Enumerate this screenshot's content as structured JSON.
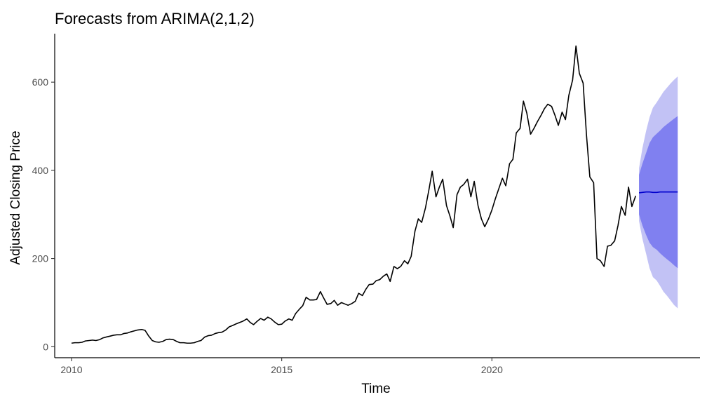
{
  "chart_data": {
    "type": "line",
    "title": "Forecasts from ARIMA(2,1,2)",
    "xlabel": "Time",
    "ylabel": "Adjusted Closing Price",
    "xlim": [
      2009.6,
      2024.95
    ],
    "ylim": [
      -25,
      710
    ],
    "x_ticks": [
      2010,
      2015,
      2020
    ],
    "y_ticks": [
      0,
      200,
      400,
      600
    ],
    "grid": false,
    "legend": "none",
    "colors": {
      "history": "#000000",
      "forecast_mean": "#0000cc",
      "band_80": "#8080f0",
      "band_95": "#c2c2f5"
    },
    "series": [
      {
        "role": "history",
        "points": [
          [
            2010.0,
            8
          ],
          [
            2010.08,
            9
          ],
          [
            2010.17,
            9
          ],
          [
            2010.25,
            10
          ],
          [
            2010.33,
            13
          ],
          [
            2010.42,
            14
          ],
          [
            2010.5,
            15
          ],
          [
            2010.58,
            14
          ],
          [
            2010.67,
            16
          ],
          [
            2010.75,
            20
          ],
          [
            2010.83,
            22
          ],
          [
            2010.92,
            24
          ],
          [
            2011.0,
            26
          ],
          [
            2011.08,
            27
          ],
          [
            2011.17,
            27
          ],
          [
            2011.25,
            30
          ],
          [
            2011.33,
            31
          ],
          [
            2011.42,
            34
          ],
          [
            2011.5,
            36
          ],
          [
            2011.58,
            38
          ],
          [
            2011.67,
            39
          ],
          [
            2011.75,
            37
          ],
          [
            2011.83,
            25
          ],
          [
            2011.92,
            14
          ],
          [
            2012.0,
            11
          ],
          [
            2012.08,
            10
          ],
          [
            2012.17,
            12
          ],
          [
            2012.25,
            16
          ],
          [
            2012.33,
            17
          ],
          [
            2012.42,
            16
          ],
          [
            2012.5,
            12
          ],
          [
            2012.58,
            9
          ],
          [
            2012.67,
            9
          ],
          [
            2012.75,
            8
          ],
          [
            2012.83,
            8
          ],
          [
            2012.92,
            9
          ],
          [
            2013.0,
            12
          ],
          [
            2013.08,
            14
          ],
          [
            2013.17,
            22
          ],
          [
            2013.25,
            25
          ],
          [
            2013.33,
            26
          ],
          [
            2013.42,
            30
          ],
          [
            2013.5,
            32
          ],
          [
            2013.58,
            33
          ],
          [
            2013.67,
            38
          ],
          [
            2013.75,
            45
          ],
          [
            2013.83,
            48
          ],
          [
            2013.92,
            52
          ],
          [
            2014.0,
            55
          ],
          [
            2014.08,
            58
          ],
          [
            2014.17,
            63
          ],
          [
            2014.25,
            55
          ],
          [
            2014.33,
            50
          ],
          [
            2014.42,
            58
          ],
          [
            2014.5,
            64
          ],
          [
            2014.58,
            60
          ],
          [
            2014.67,
            67
          ],
          [
            2014.75,
            63
          ],
          [
            2014.83,
            56
          ],
          [
            2014.92,
            50
          ],
          [
            2015.0,
            51
          ],
          [
            2015.08,
            58
          ],
          [
            2015.17,
            63
          ],
          [
            2015.25,
            60
          ],
          [
            2015.33,
            75
          ],
          [
            2015.42,
            85
          ],
          [
            2015.5,
            93
          ],
          [
            2015.58,
            112
          ],
          [
            2015.67,
            106
          ],
          [
            2015.75,
            106
          ],
          [
            2015.83,
            107
          ],
          [
            2015.92,
            125
          ],
          [
            2016.0,
            110
          ],
          [
            2016.08,
            96
          ],
          [
            2016.17,
            98
          ],
          [
            2016.25,
            105
          ],
          [
            2016.33,
            94
          ],
          [
            2016.42,
            100
          ],
          [
            2016.5,
            97
          ],
          [
            2016.58,
            94
          ],
          [
            2016.67,
            98
          ],
          [
            2016.75,
            103
          ],
          [
            2016.83,
            121
          ],
          [
            2016.92,
            116
          ],
          [
            2017.0,
            130
          ],
          [
            2017.08,
            141
          ],
          [
            2017.17,
            142
          ],
          [
            2017.25,
            150
          ],
          [
            2017.33,
            152
          ],
          [
            2017.42,
            160
          ],
          [
            2017.5,
            165
          ],
          [
            2017.58,
            148
          ],
          [
            2017.67,
            182
          ],
          [
            2017.75,
            177
          ],
          [
            2017.83,
            182
          ],
          [
            2017.92,
            195
          ],
          [
            2018.0,
            188
          ],
          [
            2018.08,
            205
          ],
          [
            2018.17,
            262
          ],
          [
            2018.25,
            290
          ],
          [
            2018.33,
            282
          ],
          [
            2018.42,
            315
          ],
          [
            2018.5,
            355
          ],
          [
            2018.58,
            398
          ],
          [
            2018.67,
            340
          ],
          [
            2018.75,
            362
          ],
          [
            2018.83,
            380
          ],
          [
            2018.92,
            320
          ],
          [
            2019.0,
            297
          ],
          [
            2019.08,
            270
          ],
          [
            2019.17,
            345
          ],
          [
            2019.25,
            362
          ],
          [
            2019.33,
            368
          ],
          [
            2019.42,
            380
          ],
          [
            2019.5,
            340
          ],
          [
            2019.58,
            375
          ],
          [
            2019.67,
            320
          ],
          [
            2019.75,
            290
          ],
          [
            2019.83,
            272
          ],
          [
            2019.92,
            290
          ],
          [
            2020.0,
            310
          ],
          [
            2020.08,
            335
          ],
          [
            2020.17,
            360
          ],
          [
            2020.25,
            382
          ],
          [
            2020.33,
            365
          ],
          [
            2020.42,
            415
          ],
          [
            2020.5,
            425
          ],
          [
            2020.58,
            485
          ],
          [
            2020.67,
            495
          ],
          [
            2020.75,
            557
          ],
          [
            2020.83,
            530
          ],
          [
            2020.92,
            482
          ],
          [
            2021.0,
            495
          ],
          [
            2021.08,
            510
          ],
          [
            2021.17,
            525
          ],
          [
            2021.25,
            540
          ],
          [
            2021.33,
            550
          ],
          [
            2021.42,
            545
          ],
          [
            2021.5,
            525
          ],
          [
            2021.58,
            502
          ],
          [
            2021.67,
            532
          ],
          [
            2021.75,
            515
          ],
          [
            2021.83,
            570
          ],
          [
            2021.92,
            605
          ],
          [
            2022.0,
            682
          ],
          [
            2022.08,
            620
          ],
          [
            2022.17,
            598
          ],
          [
            2022.25,
            480
          ],
          [
            2022.33,
            385
          ],
          [
            2022.42,
            372
          ],
          [
            2022.5,
            200
          ],
          [
            2022.58,
            195
          ],
          [
            2022.67,
            182
          ],
          [
            2022.75,
            228
          ],
          [
            2022.83,
            230
          ],
          [
            2022.92,
            240
          ],
          [
            2023.0,
            275
          ],
          [
            2023.08,
            318
          ],
          [
            2023.17,
            298
          ],
          [
            2023.25,
            362
          ],
          [
            2023.33,
            318
          ],
          [
            2023.42,
            342
          ]
        ]
      },
      {
        "role": "forecast",
        "points": [
          [
            2023.5,
            349
          ],
          [
            2023.58,
            350
          ],
          [
            2023.67,
            351
          ],
          [
            2023.75,
            351
          ],
          [
            2023.83,
            350
          ],
          [
            2023.92,
            350
          ],
          [
            2024.0,
            351
          ],
          [
            2024.08,
            351
          ],
          [
            2024.17,
            351
          ],
          [
            2024.25,
            351
          ],
          [
            2024.33,
            351
          ],
          [
            2024.42,
            351
          ]
        ],
        "lower80": [
          300,
          275,
          253,
          236,
          226,
          220,
          212,
          205,
          198,
          192,
          185,
          178
        ],
        "upper80": [
          390,
          415,
          440,
          462,
          475,
          483,
          490,
          498,
          505,
          511,
          517,
          523
        ],
        "lower95": [
          285,
          245,
          210,
          178,
          158,
          150,
          138,
          125,
          115,
          105,
          95,
          87
        ],
        "upper95": [
          405,
          450,
          490,
          520,
          542,
          554,
          566,
          578,
          588,
          597,
          605,
          613
        ]
      }
    ]
  }
}
